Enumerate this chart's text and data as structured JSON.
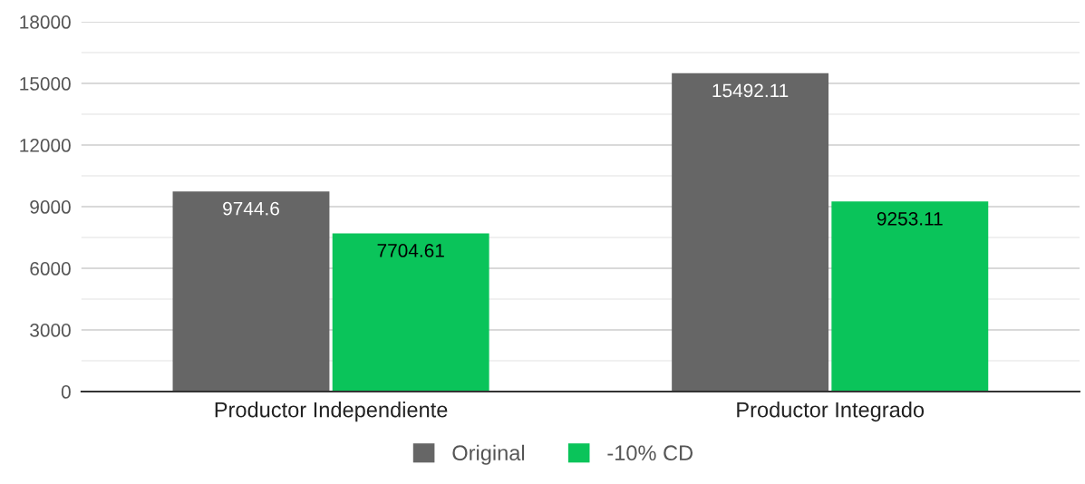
{
  "chart_data": {
    "type": "bar",
    "categories": [
      "Productor Independiente",
      "Productor Integrado"
    ],
    "series": [
      {
        "name": "Original",
        "color": "#666666",
        "values": [
          9744.6,
          15492.11
        ]
      },
      {
        "name": "-10% CD",
        "color": "#0ac45a",
        "values": [
          7704.61,
          9253.11
        ]
      }
    ],
    "ylim": [
      0,
      18000
    ],
    "yticks": [
      0,
      {
        "value": 1500,
        "label": null
      },
      3000,
      {
        "value": 4500,
        "label": null
      },
      6000,
      {
        "value": 7500,
        "label": null
      },
      9000,
      {
        "value": 10500,
        "label": null
      },
      12000,
      {
        "value": 13500,
        "label": null
      },
      15000,
      {
        "value": 16500,
        "label": null
      },
      18000
    ],
    "grid": "y",
    "legend": "bottom",
    "data_labels": true
  }
}
